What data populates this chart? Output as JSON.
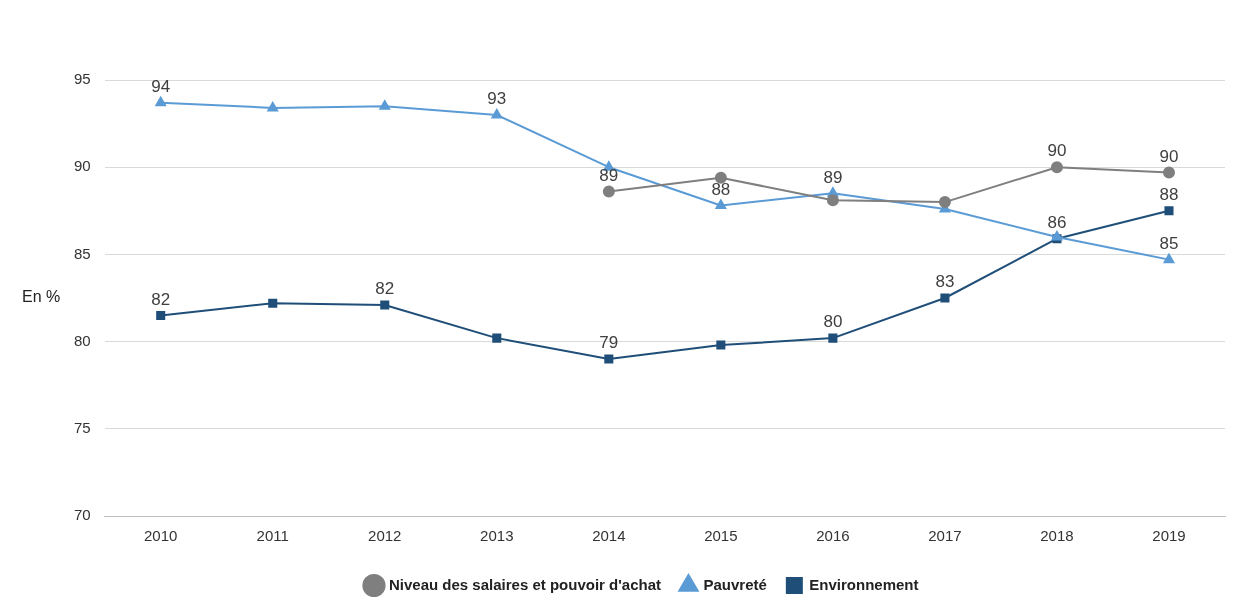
{
  "chart_data": {
    "type": "line",
    "ylabel": "En %",
    "categories": [
      "2010",
      "2011",
      "2012",
      "2013",
      "2014",
      "2015",
      "2016",
      "2017",
      "2018",
      "2019"
    ],
    "ylim": [
      70,
      95
    ],
    "yticks": [
      70,
      75,
      80,
      85,
      90,
      95
    ],
    "grid": "y",
    "legend": "bottom",
    "line_style": "solid",
    "series": [
      {
        "name": "Niveau des salaires et pouvoir d'achat",
        "color": "#7f7f7f",
        "marker": "circle",
        "values": [
          null,
          null,
          null,
          null,
          88.6,
          89.4,
          88.1,
          88.0,
          90.0,
          89.7
        ],
        "value_labels": [
          null,
          null,
          null,
          null,
          "89",
          null,
          null,
          null,
          "90",
          "90"
        ]
      },
      {
        "name": "Pauvreté",
        "color": "#5b9bd5",
        "marker": "triangle",
        "values": [
          93.7,
          93.4,
          93.5,
          93.0,
          90.0,
          87.8,
          88.5,
          87.6,
          86.0,
          84.7
        ],
        "value_labels": [
          "94",
          null,
          null,
          "93",
          null,
          "88",
          "89",
          null,
          null,
          "85"
        ]
      },
      {
        "name": "Environnement",
        "color": "#1f4e79",
        "marker": "square",
        "values": [
          81.5,
          82.2,
          82.1,
          80.2,
          79.0,
          79.8,
          80.2,
          82.5,
          85.9,
          87.5
        ],
        "value_labels": [
          "82",
          null,
          "82",
          null,
          "79",
          null,
          "80",
          "83",
          "86",
          "88"
        ]
      }
    ]
  }
}
